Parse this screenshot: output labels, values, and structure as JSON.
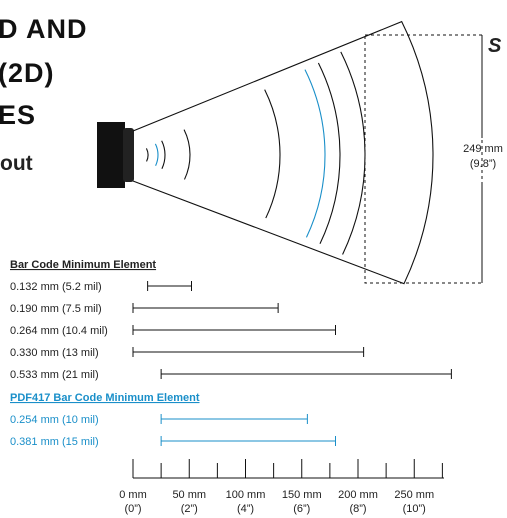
{
  "heading": {
    "lines": [
      "D AND",
      "(2D)",
      "ES"
    ],
    "sub": "out",
    "side": "S"
  },
  "height_label": {
    "mm": "249 mm",
    "inch": "(9.8”)"
  },
  "bar_codes": {
    "title": "Bar Code Minimum Element",
    "rows": [
      {
        "label": "0.132 mm (5.2 mil)",
        "start": 13,
        "end": 52
      },
      {
        "label": "0.190 mm (7.5 mil)",
        "start": 0,
        "end": 129
      },
      {
        "label": "0.264 mm (10.4 mil)",
        "start": 0,
        "end": 180
      },
      {
        "label": "0.330 mm (13 mil)",
        "start": 0,
        "end": 205
      },
      {
        "label": "0.533 mm (21 mil)",
        "start": 25,
        "end": 283
      }
    ]
  },
  "pdf417": {
    "title": "PDF417 Bar Code Minimum Element",
    "rows": [
      {
        "label": "0.254 mm (10 mil)",
        "start": 25,
        "end": 155
      },
      {
        "label": "0.381 mm (15 mil)",
        "start": 25,
        "end": 180
      }
    ]
  },
  "axis": {
    "ticks": [
      {
        "value": 0,
        "label": "0 mm",
        "inch": "(0”)"
      },
      {
        "value": 50,
        "label": "50 mm",
        "inch": "(2”)"
      },
      {
        "value": 100,
        "label": "100 mm",
        "inch": "(4”)"
      },
      {
        "value": 150,
        "label": "150 mm",
        "inch": "(6”)"
      },
      {
        "value": 200,
        "label": "200 mm",
        "inch": "(8”)"
      },
      {
        "value": 250,
        "label": "250 mm",
        "inch": "(10”)"
      }
    ],
    "minor_ticks": [
      25,
      75,
      125,
      175,
      225,
      275
    ]
  }
}
